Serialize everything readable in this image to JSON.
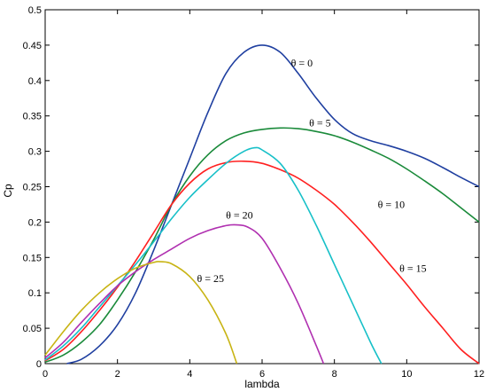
{
  "chart_data": {
    "type": "line",
    "xlabel": "lambda",
    "ylabel": "Cp",
    "xlim": [
      0,
      12
    ],
    "ylim": [
      0,
      0.5
    ],
    "xticks": [
      "0",
      "2",
      "4",
      "6",
      "8",
      "10",
      "12"
    ],
    "yticks": [
      "0",
      "0.05",
      "0.1",
      "0.15",
      "0.2",
      "0.25",
      "0.3",
      "0.35",
      "0.4",
      "0.45",
      "0.5"
    ],
    "grid": false,
    "series": [
      {
        "name": "θ = 0",
        "color": "#1f3fa0",
        "x": [
          0.6,
          1.0,
          1.5,
          2.0,
          2.5,
          3.0,
          3.5,
          4.0,
          4.5,
          5.0,
          5.5,
          6.0,
          6.5,
          7.0,
          7.5,
          8.0,
          8.5,
          9.0,
          9.5,
          10.0,
          10.5,
          11.0,
          11.5,
          12.0
        ],
        "y": [
          0.0,
          0.006,
          0.025,
          0.055,
          0.1,
          0.16,
          0.225,
          0.29,
          0.355,
          0.41,
          0.44,
          0.45,
          0.44,
          0.41,
          0.375,
          0.345,
          0.325,
          0.315,
          0.308,
          0.3,
          0.29,
          0.277,
          0.263,
          0.25
        ]
      },
      {
        "name": "θ = 5",
        "color": "#1a8a3a",
        "x": [
          0,
          0.5,
          1.0,
          1.5,
          2.0,
          2.5,
          3.0,
          3.5,
          4.0,
          4.5,
          5.0,
          5.5,
          6.0,
          6.5,
          7.0,
          7.5,
          8.0,
          8.5,
          9.0,
          9.5,
          10.0,
          10.5,
          11.0,
          11.5,
          12.0
        ],
        "y": [
          0.002,
          0.012,
          0.03,
          0.055,
          0.09,
          0.13,
          0.175,
          0.225,
          0.265,
          0.295,
          0.315,
          0.326,
          0.331,
          0.333,
          0.332,
          0.328,
          0.322,
          0.313,
          0.302,
          0.29,
          0.275,
          0.258,
          0.24,
          0.22,
          0.2
        ]
      },
      {
        "name": "θ = 10",
        "color": "#ff2020",
        "x": [
          0,
          0.5,
          1.0,
          1.5,
          2.0,
          2.5,
          3.0,
          3.5,
          4.0,
          4.5,
          5.0,
          5.5,
          6.0,
          6.5,
          7.0,
          7.5,
          8.0,
          8.5,
          9.0,
          9.5,
          10.0,
          10.5,
          11.0,
          11.5,
          12.0
        ],
        "y": [
          0.004,
          0.02,
          0.045,
          0.075,
          0.108,
          0.145,
          0.185,
          0.225,
          0.255,
          0.275,
          0.284,
          0.286,
          0.283,
          0.274,
          0.262,
          0.245,
          0.225,
          0.2,
          0.172,
          0.142,
          0.112,
          0.08,
          0.05,
          0.02,
          0.0
        ]
      },
      {
        "name": "θ = 15",
        "color": "#17c0c8",
        "x": [
          0,
          0.5,
          1.0,
          1.5,
          2.0,
          2.5,
          3.0,
          3.5,
          4.0,
          4.5,
          5.0,
          5.5,
          5.8,
          6.0,
          6.5,
          7.0,
          7.5,
          8.0,
          8.5,
          9.0,
          9.3
        ],
        "y": [
          0.005,
          0.025,
          0.05,
          0.08,
          0.11,
          0.14,
          0.172,
          0.205,
          0.235,
          0.26,
          0.283,
          0.3,
          0.305,
          0.302,
          0.283,
          0.245,
          0.195,
          0.14,
          0.085,
          0.03,
          0.0
        ]
      },
      {
        "name": "θ = 20",
        "color": "#b030b0",
        "x": [
          0,
          0.5,
          1.0,
          1.5,
          2.0,
          2.5,
          3.0,
          3.5,
          4.0,
          4.5,
          5.0,
          5.3,
          5.6,
          6.0,
          6.5,
          7.0,
          7.5,
          7.7
        ],
        "y": [
          0.008,
          0.03,
          0.058,
          0.085,
          0.11,
          0.13,
          0.147,
          0.162,
          0.177,
          0.188,
          0.195,
          0.196,
          0.193,
          0.177,
          0.135,
          0.085,
          0.025,
          0.0
        ]
      },
      {
        "name": "θ = 25",
        "color": "#c8b414",
        "x": [
          0,
          0.5,
          1.0,
          1.5,
          2.0,
          2.5,
          3.0,
          3.2,
          3.5,
          4.0,
          4.5,
          5.0,
          5.3
        ],
        "y": [
          0.012,
          0.045,
          0.075,
          0.1,
          0.12,
          0.135,
          0.143,
          0.144,
          0.141,
          0.123,
          0.09,
          0.042,
          0.0
        ]
      }
    ],
    "annotations": [
      {
        "text": "θ = 0",
        "x": 6.8,
        "y": 0.42
      },
      {
        "text": "θ = 5",
        "x": 7.3,
        "y": 0.335
      },
      {
        "text": "θ = 10",
        "x": 9.2,
        "y": 0.22
      },
      {
        "text": "θ = 15",
        "x": 9.8,
        "y": 0.13
      },
      {
        "text": "θ = 20",
        "x": 5.0,
        "y": 0.205
      },
      {
        "text": "θ = 25",
        "x": 4.2,
        "y": 0.115
      }
    ]
  }
}
